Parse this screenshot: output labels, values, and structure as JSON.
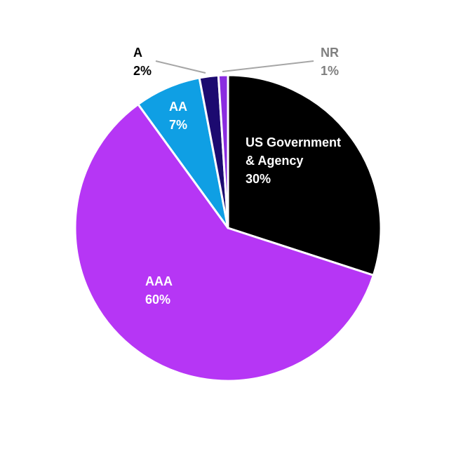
{
  "chart_data": {
    "type": "pie",
    "categories": [
      "US Government & Agency",
      "AAA",
      "AA",
      "A",
      "NR"
    ],
    "values": [
      30,
      60,
      7,
      2,
      1
    ],
    "value_labels": [
      "30%",
      "60%",
      "7%",
      "2%",
      "1%"
    ],
    "colors": [
      "#000000",
      "#b636f5",
      "#0f9fe4",
      "#1c0a70",
      "#8a2ce0"
    ]
  }
}
